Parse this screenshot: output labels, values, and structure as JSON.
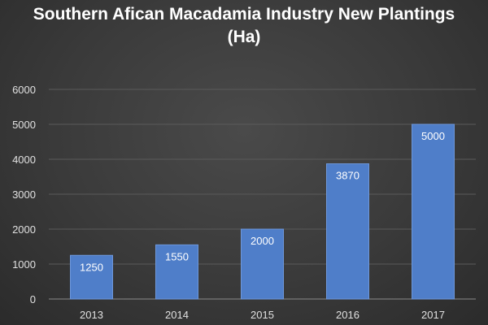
{
  "chart_data": {
    "type": "bar",
    "title_lines": [
      "Southern Afican Macadamia Industry New Plantings",
      "(Ha)"
    ],
    "categories": [
      "2013",
      "2014",
      "2015",
      "2016",
      "2017"
    ],
    "values": [
      1250,
      1550,
      2000,
      3870,
      5000
    ],
    "data_labels": [
      "1250",
      "1550",
      "2000",
      "3870",
      "5000"
    ],
    "y_ticks": [
      "0",
      "1000",
      "2000",
      "3000",
      "4000",
      "5000",
      "6000"
    ],
    "ylim": [
      0,
      6000
    ],
    "grid": true,
    "legend": "none",
    "xlabel": "",
    "ylabel": "",
    "colors": {
      "bar": "#4f7ec9",
      "bar_edge": "#6d97db",
      "grid": "#5a5a5a",
      "axis_text": "#e0e0e0",
      "label_text": "#ffffff",
      "title": "#ffffff"
    }
  }
}
